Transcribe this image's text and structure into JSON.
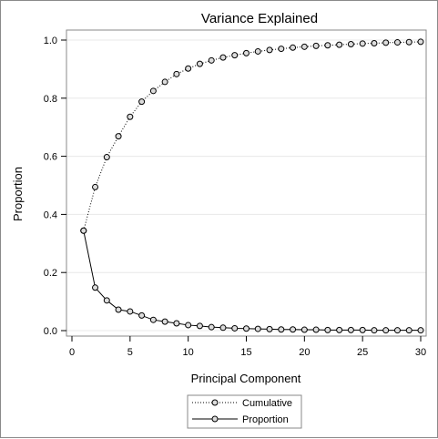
{
  "chart_data": {
    "type": "line",
    "title": "Variance Explained",
    "xlabel": "Principal Component",
    "ylabel": "Proportion",
    "xlim": [
      0,
      30
    ],
    "ylim": [
      0.0,
      1.0
    ],
    "x_ticks": [
      0,
      5,
      10,
      15,
      20,
      25,
      30
    ],
    "y_ticks": [
      "0.0",
      "0.2",
      "0.4",
      "0.6",
      "0.8",
      "1.0"
    ],
    "grid": "horizontal",
    "legend_position": "bottom",
    "x": [
      1,
      2,
      3,
      4,
      5,
      6,
      7,
      8,
      9,
      10,
      11,
      12,
      13,
      14,
      15,
      16,
      17,
      18,
      19,
      20,
      21,
      22,
      23,
      24,
      25,
      26,
      27,
      28,
      29,
      30
    ],
    "series": [
      {
        "name": "Cumulative",
        "line_style": "dotted",
        "values": [
          0.344,
          0.494,
          0.597,
          0.669,
          0.736,
          0.788,
          0.825,
          0.856,
          0.883,
          0.902,
          0.918,
          0.93,
          0.94,
          0.948,
          0.955,
          0.961,
          0.966,
          0.97,
          0.974,
          0.977,
          0.98,
          0.982,
          0.984,
          0.986,
          0.988,
          0.989,
          0.991,
          0.992,
          0.993,
          0.994
        ]
      },
      {
        "name": "Proportion",
        "line_style": "solid",
        "values": [
          0.344,
          0.148,
          0.104,
          0.072,
          0.066,
          0.052,
          0.037,
          0.031,
          0.025,
          0.019,
          0.016,
          0.012,
          0.01,
          0.008,
          0.007,
          0.006,
          0.005,
          0.004,
          0.004,
          0.003,
          0.003,
          0.002,
          0.002,
          0.002,
          0.002,
          0.001,
          0.001,
          0.001,
          0.001,
          0.001
        ]
      }
    ]
  }
}
